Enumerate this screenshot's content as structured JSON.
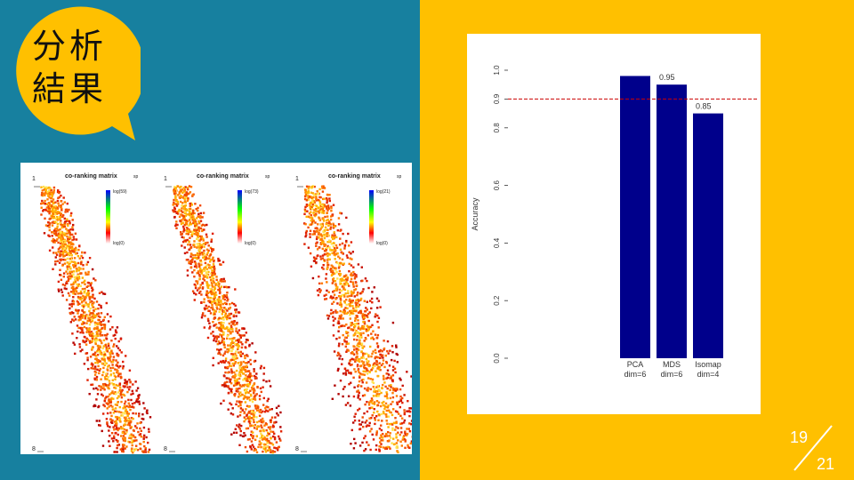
{
  "slide": {
    "title_lines": [
      "分析",
      "結果"
    ],
    "page_current": "19",
    "page_total": "21",
    "colors": {
      "left_bg": "#17809f",
      "right_bg": "#ffc000",
      "bubble": "#ffc000",
      "bar": "#00008b",
      "ref_line": "#cc0000"
    }
  },
  "heatmaps": [
    {
      "title": "co-ranking matrix",
      "tag": "sp",
      "legend_top": "log(59)",
      "legend_bottom": "log(0)",
      "corner_top": "1",
      "corner_bottom": "8"
    },
    {
      "title": "co-ranking matrix",
      "tag": "sp",
      "legend_top": "log(73)",
      "legend_bottom": "log(0)",
      "corner_top": "1",
      "corner_bottom": "8"
    },
    {
      "title": "co-ranking matrix",
      "tag": "sp",
      "legend_top": "log(21)",
      "legend_bottom": "log(0)",
      "corner_top": "1",
      "corner_bottom": "8"
    }
  ],
  "chart_data": {
    "type": "bar",
    "categories": [
      "PCA\ndim=6",
      "MDS\ndim=6",
      "Isomap\ndim=4"
    ],
    "category_labels": [
      [
        "PCA",
        "dim=6"
      ],
      [
        "MDS",
        "dim=6"
      ],
      [
        "Isomap",
        "dim=4"
      ]
    ],
    "values": [
      0.98,
      0.95,
      0.85
    ],
    "data_labels": [
      "",
      "0.95",
      "0.85"
    ],
    "ylabel": "Accuracy",
    "ylim": [
      0,
      1.0
    ],
    "yticks": [
      "0.0",
      "0.2",
      "0.4",
      "0.6",
      "0.8",
      "0.9",
      "1.0"
    ],
    "ytick_values": [
      0,
      0.2,
      0.4,
      0.6,
      0.8,
      0.9,
      1.0
    ],
    "reference_line": 0.9
  }
}
